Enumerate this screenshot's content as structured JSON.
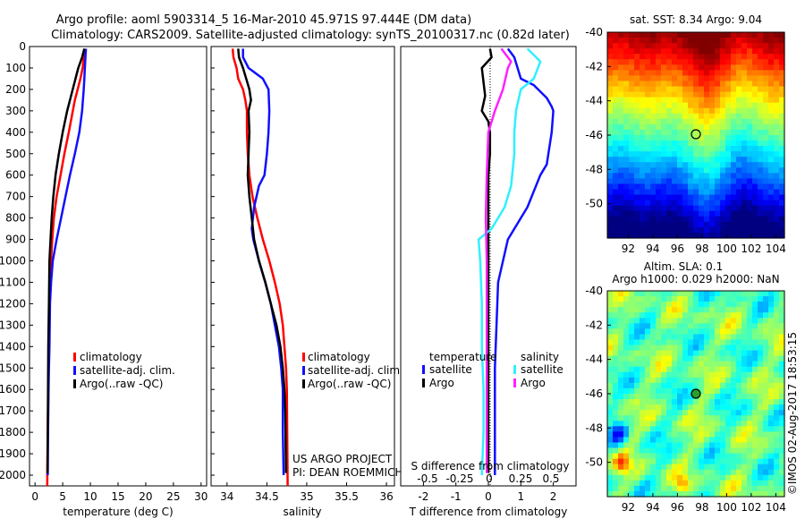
{
  "header": {
    "line1": "Argo profile: aoml 5903314_5 16-Mar-2010 45.971S 97.444E (DM data)",
    "line2": "Climatology: CARS2009. Satellite-adjusted climatology: synTS_20100317.nc (0.82d later)"
  },
  "colors": {
    "climatology": "#ff0000",
    "satellite": "#1010ff",
    "argo": "#000000",
    "sal_satellite": "#30f0ff",
    "sal_argo": "#ff20ff"
  },
  "credits": {
    "line1": "US ARGO PROJECT",
    "line2": "PI: DEAN ROEMMICH"
  },
  "stamp": "©IMOS 02-Aug-2017 18:53:15",
  "chart_data": [
    {
      "type": "line",
      "panel": "temperature",
      "xlabel": "temperature (deg C)",
      "xlim": [
        -1,
        31
      ],
      "ylim": [
        2050,
        0
      ],
      "x_ticks": [
        0,
        5,
        10,
        15,
        20,
        25,
        30
      ],
      "y_ticks": [
        0,
        100,
        200,
        300,
        400,
        500,
        600,
        700,
        800,
        900,
        1000,
        1100,
        1200,
        1300,
        1400,
        1500,
        1600,
        1700,
        1800,
        1900,
        2000
      ],
      "legend": [
        "climatology",
        "satellite-adj. clim.",
        "Argo(..raw -QC)"
      ],
      "series": [
        {
          "name": "climatology",
          "color_key": "climatology",
          "x": [
            8.9,
            8.8,
            8.6,
            8.2,
            7.2,
            6.1,
            5.3,
            4.6,
            3.9,
            3.4,
            3.1,
            2.9,
            2.7,
            2.6,
            2.5,
            2.45,
            2.4,
            2.35,
            2.3,
            2.25,
            2.2
          ],
          "y": [
            10,
            50,
            100,
            150,
            250,
            400,
            500,
            600,
            700,
            800,
            900,
            1000,
            1100,
            1200,
            1400,
            1500,
            1600,
            1700,
            1800,
            1900,
            2050
          ]
        },
        {
          "name": "satellite-adj. clim.",
          "color_key": "satellite",
          "x": [
            9.2,
            9.1,
            9.0,
            8.9,
            8.8,
            8.5,
            8.0,
            7.2,
            6.3,
            5.5,
            4.7,
            3.9,
            3.2,
            2.9,
            2.7,
            2.6,
            2.5,
            2.45,
            2.4,
            2.35,
            2.3
          ],
          "y": [
            10,
            50,
            100,
            150,
            200,
            300,
            400,
            500,
            600,
            700,
            800,
            900,
            1000,
            1100,
            1200,
            1400,
            1500,
            1600,
            1700,
            1800,
            2000
          ]
        },
        {
          "name": "Argo(..raw -QC)",
          "color_key": "argo",
          "x": [
            8.9,
            8.5,
            7.8,
            6.8,
            5.8,
            5.0,
            4.3,
            3.7,
            3.3,
            3.0,
            2.8,
            2.6,
            2.5,
            2.4,
            2.35,
            2.3,
            2.25
          ],
          "y": [
            10,
            50,
            100,
            200,
            300,
            400,
            500,
            600,
            700,
            800,
            900,
            1000,
            1200,
            1400,
            1600,
            1800,
            1990
          ]
        }
      ]
    },
    {
      "type": "line",
      "panel": "salinity",
      "xlabel": "salinity",
      "xlim": [
        33.8,
        36.1
      ],
      "ylim": [
        2050,
        0
      ],
      "x_ticks": [
        34,
        34.5,
        35,
        35.5,
        36
      ],
      "legend": [
        "climatology",
        "satellite-adj. clim.",
        "Argo(..raw -QC)"
      ],
      "series": [
        {
          "name": "climatology",
          "color_key": "climatology",
          "x": [
            34.07,
            34.08,
            34.12,
            34.14,
            34.2,
            34.23,
            34.25,
            34.25,
            34.26,
            34.28,
            34.32,
            34.38,
            34.45,
            34.53,
            34.6,
            34.66,
            34.7,
            34.72,
            34.74,
            34.75,
            34.76
          ],
          "y": [
            10,
            50,
            100,
            150,
            200,
            250,
            300,
            400,
            500,
            600,
            700,
            800,
            900,
            1000,
            1100,
            1200,
            1300,
            1400,
            1500,
            1600,
            2050
          ]
        },
        {
          "name": "satellite-adj. clim.",
          "color_key": "satellite",
          "x": [
            34.2,
            34.2,
            34.27,
            34.45,
            34.52,
            34.53,
            34.52,
            34.5,
            34.47,
            34.4,
            34.34,
            34.31,
            34.33,
            34.4,
            34.48,
            34.55,
            34.6,
            34.65,
            34.68,
            34.7,
            34.7,
            34.71
          ],
          "y": [
            10,
            50,
            100,
            150,
            200,
            300,
            400,
            500,
            600,
            650,
            750,
            850,
            900,
            1000,
            1100,
            1200,
            1300,
            1400,
            1500,
            1600,
            1800,
            2000
          ]
        },
        {
          "name": "Argo(..raw -QC)",
          "color_key": "argo",
          "x": [
            34.14,
            34.15,
            34.2,
            34.28,
            34.3,
            34.27,
            34.28,
            34.27,
            34.26,
            34.28,
            34.31,
            34.34,
            34.4,
            34.48,
            34.55,
            34.62,
            34.67,
            34.7,
            34.72,
            34.73,
            34.74
          ],
          "y": [
            10,
            50,
            100,
            200,
            250,
            300,
            400,
            500,
            600,
            700,
            800,
            900,
            1000,
            1100,
            1200,
            1300,
            1400,
            1500,
            1600,
            1700,
            1990
          ]
        }
      ]
    },
    {
      "type": "line",
      "panel": "difference",
      "xlabel": "T difference from climatology",
      "xlabel_top": "S difference from climatology",
      "xlim": [
        -2.7,
        2.7
      ],
      "ylim": [
        2050,
        0
      ],
      "x_ticks": [
        -2,
        -1,
        0,
        1,
        2
      ],
      "x_ticks_top": [
        "-0.5",
        "-0.25",
        "0",
        "0.25",
        "0.5"
      ],
      "legend_title_left": "temperature",
      "legend_title_right": "salinity",
      "legend": [
        "satellite",
        "Argo",
        "satellite",
        "Argo"
      ],
      "series": [
        {
          "name": "satellite",
          "group": "temperature",
          "color_key": "satellite",
          "x": [
            0.6,
            0.8,
            1.0,
            1.4,
            1.8,
            1.95,
            2.0,
            1.95,
            1.85,
            1.8,
            1.6,
            1.2,
            0.6,
            0.3,
            0.25,
            0.2,
            0.2,
            0.2,
            0.2
          ],
          "y": [
            10,
            50,
            150,
            180,
            240,
            280,
            300,
            400,
            500,
            550,
            600,
            750,
            900,
            1100,
            1300,
            1500,
            1700,
            1900,
            2000
          ]
        },
        {
          "name": "Argo",
          "group": "temperature",
          "color_key": "argo",
          "x": [
            0.05,
            0.1,
            -0.2,
            -0.1,
            -0.2,
            0.0,
            0.05,
            0.05,
            0.0,
            0.0,
            0.0,
            0.0,
            0.0,
            0.0,
            0.0
          ],
          "y": [
            10,
            50,
            100,
            230,
            300,
            350,
            400,
            500,
            600,
            700,
            850,
            1000,
            1200,
            1500,
            1990
          ]
        },
        {
          "name": "satellite",
          "group": "salinity",
          "color_key": "sal_satellite",
          "x": [
            1.2,
            1.6,
            1.4,
            1.0,
            0.85,
            0.8,
            0.8,
            0.7,
            0.5,
            0.1,
            -0.3,
            -0.25,
            -0.2,
            -0.2,
            -0.15,
            -0.15,
            -0.2
          ],
          "y": [
            10,
            70,
            150,
            200,
            300,
            400,
            500,
            650,
            750,
            850,
            900,
            1000,
            1200,
            1400,
            1600,
            1800,
            2000
          ]
        },
        {
          "name": "Argo",
          "group": "salinity",
          "color_key": "sal_argo",
          "x": [
            0.4,
            0.7,
            0.6,
            0.45,
            0.2,
            0.0,
            -0.05,
            -0.08,
            -0.05,
            -0.05,
            -0.05,
            -0.05,
            -0.05,
            -0.05
          ],
          "y": [
            10,
            70,
            100,
            200,
            300,
            400,
            600,
            800,
            1000,
            1200,
            1400,
            1600,
            1800,
            1990
          ]
        }
      ]
    },
    {
      "type": "heatmap",
      "panel": "sst_map",
      "title": "sat. SST: 8.34  Argo: 9.04",
      "x_ticks": [
        92,
        94,
        96,
        98,
        100,
        102,
        104
      ],
      "y_ticks": [
        -40,
        -42,
        -44,
        -46,
        -48,
        -50
      ],
      "xlim": [
        90.3,
        104.7
      ],
      "ylim": [
        -52,
        -40
      ],
      "marker": {
        "lon": 97.444,
        "lat": -45.971
      }
    },
    {
      "type": "heatmap",
      "panel": "sla_map",
      "title": "Altim. SLA: 0.1",
      "subtitle": "Argo h1000: 0.029 h2000: NaN",
      "x_ticks": [
        92,
        94,
        96,
        98,
        100,
        102,
        104
      ],
      "y_ticks": [
        -40,
        -42,
        -44,
        -46,
        -48,
        -50
      ],
      "xlim": [
        90.3,
        104.7
      ],
      "ylim": [
        -52,
        -40
      ],
      "marker": {
        "lon": 97.444,
        "lat": -45.971
      }
    }
  ]
}
